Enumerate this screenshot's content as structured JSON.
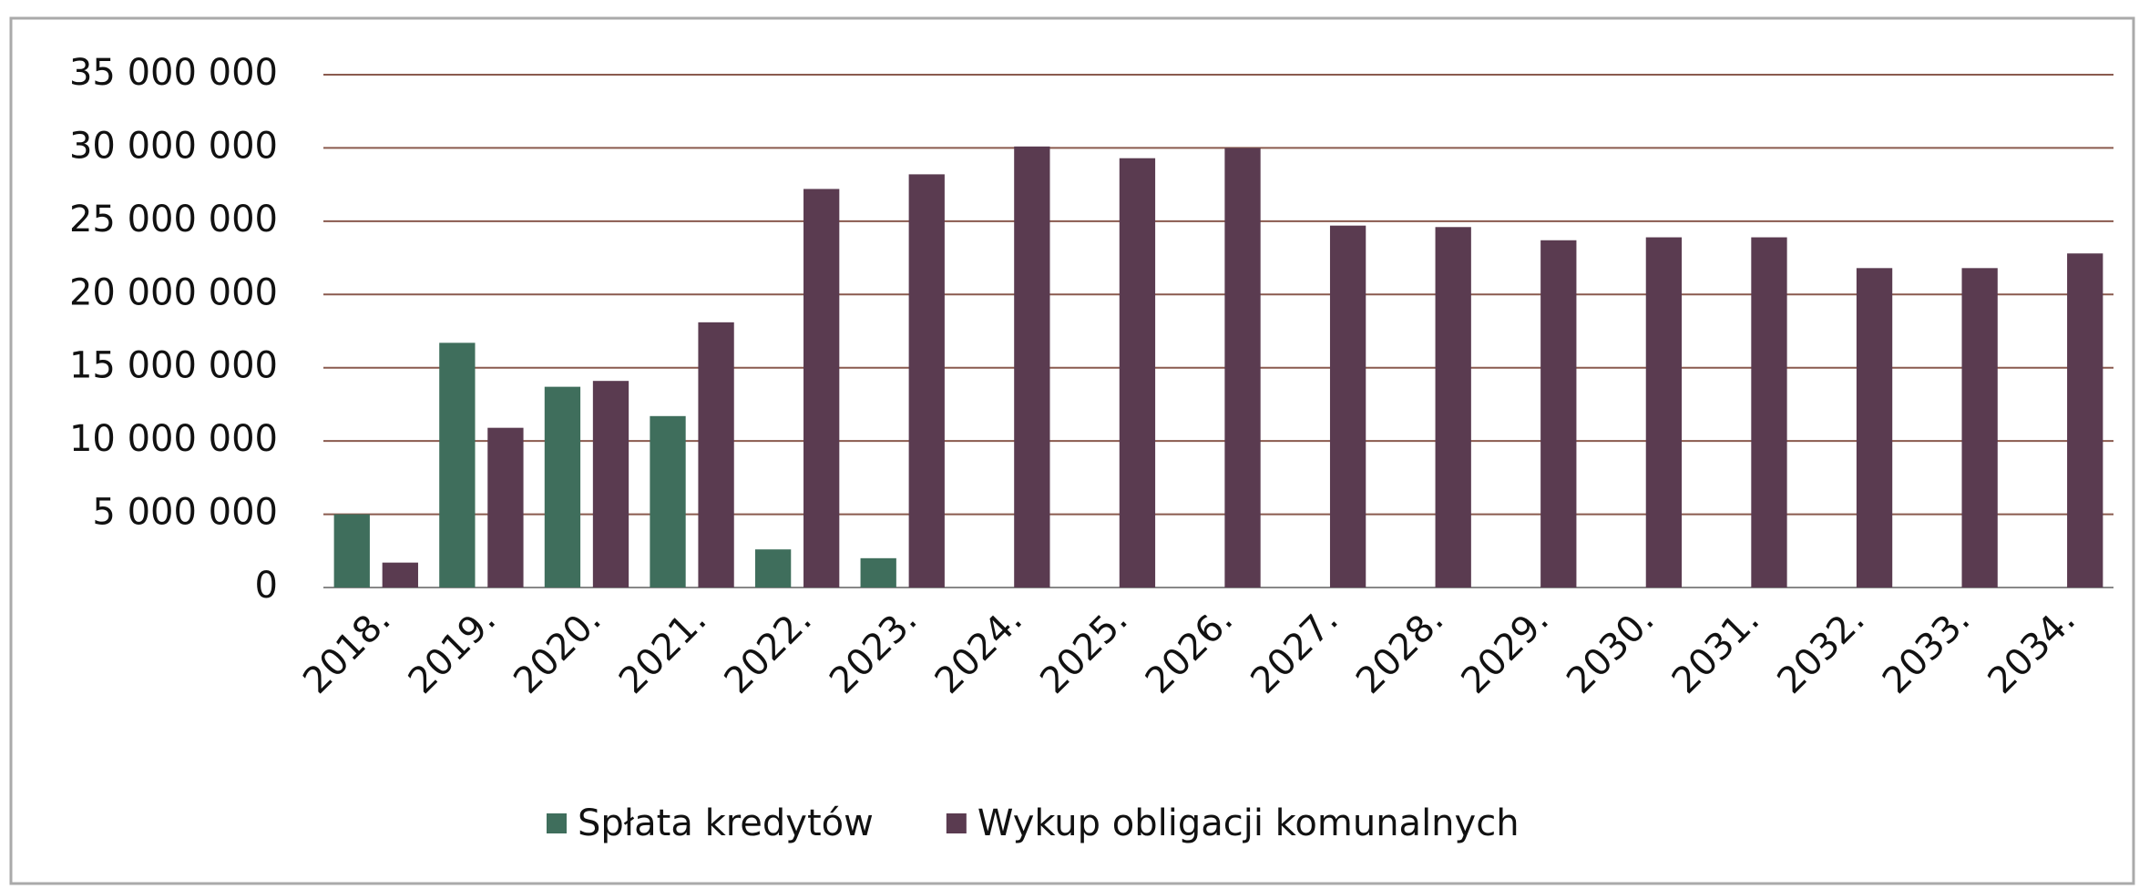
{
  "chart_data": {
    "type": "bar",
    "categories": [
      "2018.",
      "2019.",
      "2020.",
      "2021.",
      "2022.",
      "2023.",
      "2024.",
      "2025.",
      "2026.",
      "2027.",
      "2028.",
      "2029.",
      "2030.",
      "2031.",
      "2032.",
      "2033.",
      "2034."
    ],
    "series": [
      {
        "name": "Spłata kredytów",
        "color": "#3f6e5c",
        "values": [
          5000000,
          16700000,
          13700000,
          11700000,
          2600000,
          2000000,
          0,
          0,
          0,
          0,
          0,
          0,
          0,
          0,
          0,
          0,
          0
        ]
      },
      {
        "name": "Wykup obligacji komunalnych",
        "color": "#5a3b50",
        "values": [
          1700000,
          10900000,
          14100000,
          18100000,
          27200000,
          28200000,
          30100000,
          29300000,
          30000000,
          24700000,
          24600000,
          23700000,
          23900000,
          23900000,
          21800000,
          21800000,
          22800000
        ]
      }
    ],
    "ylim": [
      0,
      35000000
    ],
    "yticks": [
      0,
      {
        "value": 5000000,
        "label": "5 000 000"
      },
      {
        "value": 10000000,
        "label": "10 000 000"
      },
      {
        "value": 15000000,
        "label": "15 000 000"
      },
      {
        "value": 20000000,
        "label": "20 000 000"
      },
      {
        "value": 25000000,
        "label": "25 000 000"
      },
      {
        "value": 30000000,
        "label": "30 000 000"
      },
      {
        "value": 35000000,
        "label": "35 000 000"
      }
    ],
    "grid": true,
    "legend": "bottom"
  }
}
